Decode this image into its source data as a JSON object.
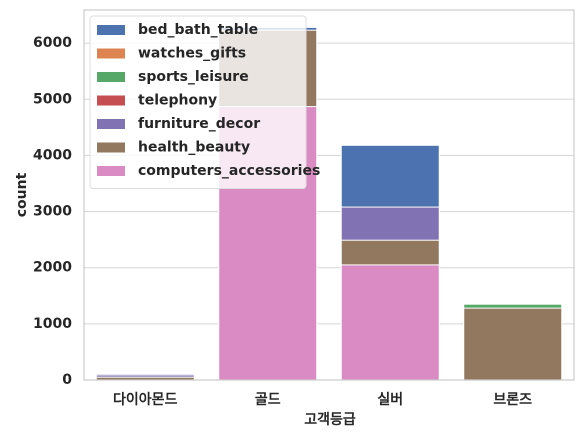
{
  "chart_data": {
    "type": "bar",
    "categories": [
      "다이아몬드",
      "골드",
      "실버",
      "브론즈"
    ],
    "series": [
      {
        "name": "bed_bath_table",
        "color": "#4c72b0",
        "values": [
          110,
          6280,
          4180,
          1200
        ]
      },
      {
        "name": "watches_gifts",
        "color": "#dd8452",
        "values": [
          60,
          5000,
          1500,
          900
        ]
      },
      {
        "name": "sports_leisure",
        "color": "#55a868",
        "values": [
          70,
          5500,
          1800,
          1350
        ]
      },
      {
        "name": "telephony",
        "color": "#c44e52",
        "values": [
          40,
          4500,
          1200,
          700
        ]
      },
      {
        "name": "furniture_decor",
        "color": "#8172b3",
        "values": [
          90,
          5800,
          3080,
          1100
        ]
      },
      {
        "name": "health_beauty",
        "color": "#937860",
        "values": [
          50,
          6230,
          2490,
          1280
        ]
      },
      {
        "name": "computers_accessories",
        "color": "#da8bc3",
        "values": [
          0,
          4870,
          2050,
          0
        ]
      }
    ],
    "xlabel": "고객등급",
    "ylabel": "count",
    "ylim": [
      0,
      6590
    ],
    "yticks": [
      0,
      1000,
      2000,
      3000,
      4000,
      5000,
      6000
    ],
    "grid": true,
    "legend": "upper left"
  }
}
